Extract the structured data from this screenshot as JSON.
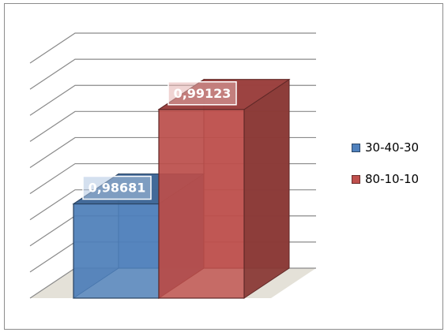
{
  "chart_data": {
    "type": "bar",
    "categories": [
      ""
    ],
    "series": [
      {
        "name": "30-40-30",
        "values": [
          0.98681
        ],
        "label": "0,98681",
        "color": "#4F81BD"
      },
      {
        "name": "80-10-10",
        "values": [
          0.99123
        ],
        "label": "0,99123",
        "color": "#C0504D"
      }
    ],
    "title": "",
    "xlabel": "",
    "ylabel": "",
    "ylim": [
      0.9824,
      0.9934
    ],
    "grid": true,
    "tick_labels_shown": false,
    "legend": "right",
    "style": "3d"
  }
}
